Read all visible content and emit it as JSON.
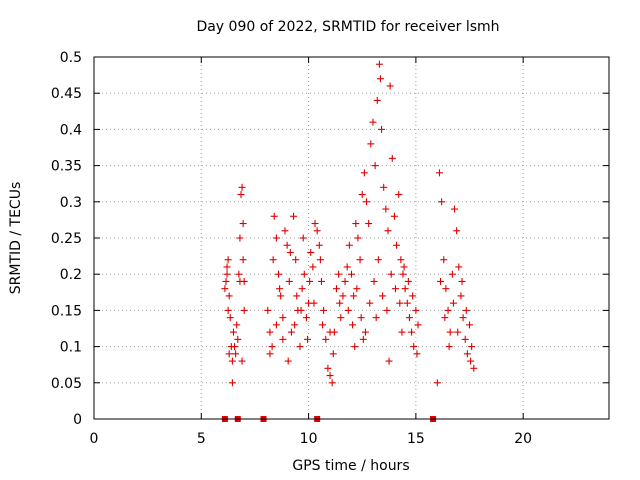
{
  "chart_data": {
    "type": "scatter",
    "title": "Day 090 of 2022, SRMTID for receiver lsmh",
    "xlabel": "GPS time / hours",
    "ylabel": "SRMTID / TECUs",
    "xlim": [
      0,
      24
    ],
    "ylim": [
      0,
      0.5
    ],
    "xticks": [
      0,
      5,
      10,
      15,
      20
    ],
    "yticks": [
      0,
      0.05,
      0.1,
      0.15,
      0.2,
      0.25,
      0.3,
      0.35,
      0.4,
      0.45,
      0.5
    ],
    "xtick_labels": [
      "0",
      "5",
      "10",
      "15",
      "20"
    ],
    "ytick_labels": [
      "0",
      "0.05",
      "0.1",
      "0.15",
      "0.2",
      "0.25",
      "0.3",
      "0.35",
      "0.4",
      "0.45",
      "0.5"
    ],
    "grid": true,
    "marker": "+",
    "color": "#e00000",
    "zero_markers_x": [
      6.1,
      6.7,
      7.9,
      10.4,
      15.8
    ],
    "series": [
      {
        "name": "SRMTID",
        "points": [
          [
            6.1,
            0.18
          ],
          [
            6.15,
            0.19
          ],
          [
            6.2,
            0.21
          ],
          [
            6.25,
            0.22
          ],
          [
            6.3,
            0.17
          ],
          [
            6.35,
            0.14
          ],
          [
            6.4,
            0.1
          ],
          [
            6.45,
            0.08
          ],
          [
            6.5,
            0.12
          ],
          [
            6.45,
            0.05
          ],
          [
            6.6,
            0.09
          ],
          [
            6.7,
            0.11
          ],
          [
            6.75,
            0.2
          ],
          [
            6.8,
            0.25
          ],
          [
            6.85,
            0.31
          ],
          [
            6.9,
            0.32
          ],
          [
            6.95,
            0.22
          ],
          [
            7.0,
            0.15
          ],
          [
            6.9,
            0.08
          ],
          [
            7.0,
            0.19
          ],
          [
            6.25,
            0.15
          ],
          [
            6.3,
            0.09
          ],
          [
            6.55,
            0.1
          ],
          [
            6.65,
            0.13
          ],
          [
            6.95,
            0.27
          ],
          [
            6.8,
            0.19
          ],
          [
            6.2,
            0.2
          ],
          [
            8.1,
            0.15
          ],
          [
            8.2,
            0.12
          ],
          [
            8.3,
            0.1
          ],
          [
            8.4,
            0.28
          ],
          [
            8.5,
            0.25
          ],
          [
            8.6,
            0.2
          ],
          [
            8.7,
            0.17
          ],
          [
            8.8,
            0.14
          ],
          [
            8.9,
            0.26
          ],
          [
            9.0,
            0.24
          ],
          [
            9.1,
            0.19
          ],
          [
            9.2,
            0.12
          ],
          [
            9.3,
            0.28
          ],
          [
            9.4,
            0.22
          ],
          [
            9.5,
            0.15
          ],
          [
            9.6,
            0.1
          ],
          [
            9.7,
            0.18
          ],
          [
            9.8,
            0.2
          ],
          [
            9.9,
            0.14
          ],
          [
            10.0,
            0.16
          ],
          [
            10.1,
            0.23
          ],
          [
            10.2,
            0.21
          ],
          [
            10.3,
            0.27
          ],
          [
            10.4,
            0.26
          ],
          [
            10.5,
            0.24
          ],
          [
            10.55,
            0.22
          ],
          [
            10.6,
            0.19
          ],
          [
            10.7,
            0.15
          ],
          [
            10.8,
            0.11
          ],
          [
            10.9,
            0.07
          ],
          [
            11.0,
            0.06
          ],
          [
            11.1,
            0.05
          ],
          [
            11.2,
            0.12
          ],
          [
            11.3,
            0.18
          ],
          [
            11.4,
            0.2
          ],
          [
            11.5,
            0.14
          ],
          [
            11.6,
            0.17
          ],
          [
            11.7,
            0.19
          ],
          [
            8.2,
            0.09
          ],
          [
            8.5,
            0.13
          ],
          [
            8.8,
            0.11
          ],
          [
            9.05,
            0.08
          ],
          [
            9.35,
            0.13
          ],
          [
            9.65,
            0.15
          ],
          [
            9.95,
            0.11
          ],
          [
            10.25,
            0.16
          ],
          [
            10.65,
            0.13
          ],
          [
            11.0,
            0.12
          ],
          [
            11.15,
            0.09
          ],
          [
            11.45,
            0.16
          ],
          [
            8.35,
            0.22
          ],
          [
            8.65,
            0.18
          ],
          [
            9.15,
            0.23
          ],
          [
            9.45,
            0.17
          ],
          [
            9.75,
            0.25
          ],
          [
            10.05,
            0.19
          ],
          [
            11.8,
            0.21
          ],
          [
            11.9,
            0.24
          ],
          [
            12.0,
            0.2
          ],
          [
            12.1,
            0.17
          ],
          [
            12.2,
            0.27
          ],
          [
            12.3,
            0.25
          ],
          [
            12.4,
            0.22
          ],
          [
            12.5,
            0.31
          ],
          [
            12.6,
            0.34
          ],
          [
            12.7,
            0.3
          ],
          [
            12.8,
            0.27
          ],
          [
            12.9,
            0.38
          ],
          [
            13.0,
            0.41
          ],
          [
            13.1,
            0.35
          ],
          [
            13.2,
            0.44
          ],
          [
            13.3,
            0.49
          ],
          [
            13.35,
            0.47
          ],
          [
            13.4,
            0.4
          ],
          [
            13.5,
            0.32
          ],
          [
            13.6,
            0.29
          ],
          [
            13.7,
            0.26
          ],
          [
            13.8,
            0.46
          ],
          [
            13.9,
            0.36
          ],
          [
            14.0,
            0.28
          ],
          [
            14.1,
            0.24
          ],
          [
            14.2,
            0.31
          ],
          [
            14.3,
            0.22
          ],
          [
            14.4,
            0.2
          ],
          [
            14.5,
            0.18
          ],
          [
            14.6,
            0.16
          ],
          [
            14.7,
            0.14
          ],
          [
            14.8,
            0.12
          ],
          [
            14.9,
            0.1
          ],
          [
            15.0,
            0.15
          ],
          [
            15.1,
            0.13
          ],
          [
            11.85,
            0.15
          ],
          [
            12.05,
            0.13
          ],
          [
            12.25,
            0.18
          ],
          [
            12.45,
            0.14
          ],
          [
            12.65,
            0.12
          ],
          [
            12.85,
            0.16
          ],
          [
            13.05,
            0.19
          ],
          [
            13.25,
            0.22
          ],
          [
            13.45,
            0.17
          ],
          [
            13.65,
            0.15
          ],
          [
            13.85,
            0.2
          ],
          [
            14.05,
            0.18
          ],
          [
            14.25,
            0.16
          ],
          [
            14.45,
            0.21
          ],
          [
            14.65,
            0.19
          ],
          [
            14.85,
            0.17
          ],
          [
            12.15,
            0.1
          ],
          [
            12.55,
            0.11
          ],
          [
            13.15,
            0.14
          ],
          [
            13.75,
            0.08
          ],
          [
            14.35,
            0.12
          ],
          [
            15.05,
            0.09
          ],
          [
            16.0,
            0.05
          ],
          [
            16.1,
            0.34
          ],
          [
            16.2,
            0.3
          ],
          [
            16.3,
            0.22
          ],
          [
            16.4,
            0.18
          ],
          [
            16.5,
            0.15
          ],
          [
            16.6,
            0.12
          ],
          [
            16.7,
            0.2
          ],
          [
            16.8,
            0.29
          ],
          [
            16.9,
            0.26
          ],
          [
            17.0,
            0.21
          ],
          [
            17.1,
            0.17
          ],
          [
            17.2,
            0.14
          ],
          [
            17.3,
            0.11
          ],
          [
            17.4,
            0.09
          ],
          [
            17.5,
            0.13
          ],
          [
            17.6,
            0.1
          ],
          [
            17.7,
            0.07
          ],
          [
            16.15,
            0.19
          ],
          [
            16.35,
            0.14
          ],
          [
            16.55,
            0.1
          ],
          [
            16.75,
            0.16
          ],
          [
            16.95,
            0.12
          ],
          [
            17.15,
            0.19
          ],
          [
            17.35,
            0.15
          ],
          [
            17.55,
            0.08
          ]
        ]
      }
    ]
  }
}
